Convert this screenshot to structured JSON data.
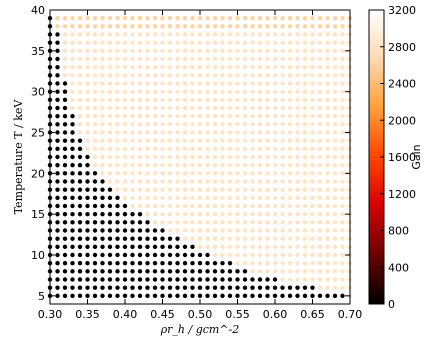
{
  "chart_data": {
    "type": "scatter",
    "title": "",
    "xlabel": "ρr_h / gcm^-2",
    "ylabel": "Temperature T / keV",
    "xlim": [
      0.3,
      0.7
    ],
    "ylim": [
      4,
      40
    ],
    "x_tick_labels": [
      "0.30",
      "0.35",
      "0.40",
      "0.45",
      "0.50",
      "0.55",
      "0.60",
      "0.65",
      "0.70"
    ],
    "y_tick_labels": [
      "5",
      "10",
      "15",
      "20",
      "25",
      "30",
      "35",
      "40"
    ],
    "grid": false,
    "grid_spec": {
      "x_start": 0.3,
      "x_step": 0.01,
      "x_count": 41,
      "y_start": 5,
      "y_step": 1,
      "y_count": 35
    },
    "black_boundary_x_by_temperature": [
      0.69,
      0.65,
      0.6,
      0.56,
      0.54,
      0.51,
      0.49,
      0.47,
      0.45,
      0.43,
      0.42,
      0.4,
      0.39,
      0.38,
      0.37,
      0.36,
      0.35,
      0.35,
      0.34,
      0.34,
      0.33,
      0.33,
      0.33,
      0.32,
      0.32,
      0.32,
      0.32,
      0.31,
      0.31,
      0.31,
      0.31,
      0.31,
      0.31,
      0.3,
      0.3
    ],
    "gain_low": 0,
    "gain_high": 2800,
    "gain_high_top_edge": 3000,
    "colorbar": {
      "label": "Gain",
      "min": 0,
      "max": 3200,
      "tick_labels": [
        "0",
        "400",
        "800",
        "1200",
        "1600",
        "2000",
        "2400",
        "2800",
        "3200"
      ],
      "colors": [
        "#000000",
        "#6b0000",
        "#d60000",
        "#ff4400",
        "#ff9e38",
        "#ffd9b0",
        "#ffffff"
      ]
    }
  }
}
